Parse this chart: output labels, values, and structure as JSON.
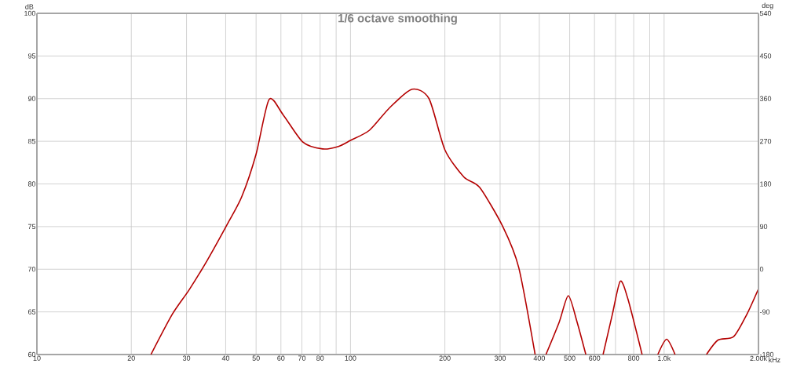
{
  "chart_data": {
    "type": "line",
    "title": "1/6 octave smoothing",
    "ylabel": "dB",
    "y2label": "deg",
    "log": "x",
    "grid": true,
    "xlim": [
      10,
      2000
    ],
    "ylim": [
      60,
      100
    ],
    "y2lim": [
      -180,
      540
    ],
    "xticks": [
      10,
      20,
      30,
      40,
      50,
      60,
      70,
      80,
      {
        "value": 90,
        "label": null
      },
      100,
      200,
      300,
      400,
      500,
      600,
      {
        "value": 700,
        "label": null
      },
      800,
      {
        "value": 900,
        "label": null
      },
      {
        "value": 1000,
        "label": "1.0k"
      },
      {
        "value": 2000,
        "label": "2.00k"
      }
    ],
    "xlabel": "kHz",
    "yticks": [
      60,
      65,
      70,
      75,
      80,
      85,
      90,
      95,
      100
    ],
    "y2ticks": [
      -180,
      -90,
      0,
      90,
      180,
      270,
      360,
      450,
      540
    ],
    "series": [
      {
        "color": "#b40000",
        "x": [
          23.1,
          27,
          30.6,
          35,
          40.5,
          45,
          50,
          55,
          61,
          70.5,
          81.5,
          91.5,
          100,
          115,
          133,
          157,
          178,
          200,
          230,
          258,
          306,
          344,
          388,
          400,
          420,
          463,
          495,
          528,
          563,
          600,
          639,
          684,
          725,
          767,
          851,
          900,
          955,
          1019,
          1084,
          1200,
          1365,
          1486,
          1667,
          1836,
          2000
        ],
        "values": [
          60,
          64.7,
          67.6,
          71.1,
          75.3,
          78.5,
          83.5,
          89.9,
          88.1,
          84.9,
          84.1,
          84.4,
          85.1,
          86.3,
          88.9,
          91.1,
          90.0,
          84.0,
          80.8,
          79.6,
          75.0,
          70.2,
          60,
          null,
          60,
          63.8,
          66.9,
          63.8,
          60,
          null,
          60,
          64.7,
          68.6,
          66.5,
          60,
          null,
          60,
          61.8,
          60,
          null,
          60,
          61.7,
          62.1,
          64.7,
          67.7
        ]
      }
    ]
  }
}
